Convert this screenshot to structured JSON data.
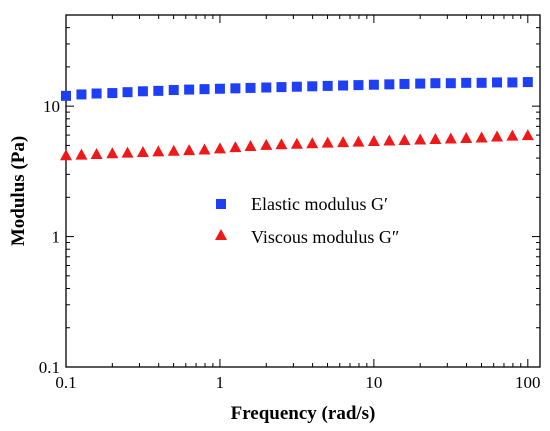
{
  "chart_data": {
    "type": "scatter",
    "xlabel": "Frequency (rad/s)",
    "ylabel": "Modulus (Pa)",
    "xscale": "log",
    "yscale": "log",
    "xlim": [
      0.1,
      120
    ],
    "ylim": [
      0.1,
      50
    ],
    "xticks": [
      {
        "value": 0.1,
        "label": "0.1"
      },
      {
        "value": 1,
        "label": "1"
      },
      {
        "value": 10,
        "label": "10"
      },
      {
        "value": 100,
        "label": "100"
      }
    ],
    "yticks": [
      {
        "value": 0.1,
        "label": "0.1"
      },
      {
        "value": 1,
        "label": "1"
      },
      {
        "value": 10,
        "label": "10"
      }
    ],
    "grid": false,
    "legend_position": "center",
    "x": [
      0.1,
      0.126,
      0.158,
      0.2,
      0.251,
      0.316,
      0.398,
      0.501,
      0.631,
      0.794,
      1,
      1.26,
      1.58,
      2,
      2.51,
      3.16,
      3.98,
      5.01,
      6.31,
      7.94,
      10,
      12.6,
      15.8,
      20,
      25.1,
      31.6,
      39.8,
      50.1,
      63.1,
      79.4,
      100
    ],
    "series": [
      {
        "name": "Elastic modulus G′",
        "marker": "square",
        "color": "#1f3ff5",
        "values": [
          12.0,
          12.3,
          12.5,
          12.6,
          12.8,
          13.0,
          13.1,
          13.3,
          13.4,
          13.5,
          13.6,
          13.7,
          13.8,
          13.9,
          14.0,
          14.1,
          14.2,
          14.3,
          14.4,
          14.5,
          14.6,
          14.7,
          14.8,
          14.9,
          15.0,
          15.0,
          15.1,
          15.1,
          15.2,
          15.2,
          15.3
        ]
      },
      {
        "name": "Viscous modulus G″",
        "marker": "triangle",
        "color": "#f01818",
        "values": [
          4.2,
          4.25,
          4.3,
          4.35,
          4.4,
          4.45,
          4.5,
          4.55,
          4.6,
          4.65,
          4.75,
          4.85,
          4.95,
          5.05,
          5.1,
          5.15,
          5.2,
          5.25,
          5.3,
          5.35,
          5.4,
          5.45,
          5.5,
          5.55,
          5.6,
          5.65,
          5.7,
          5.75,
          5.85,
          5.95,
          6.0
        ]
      }
    ]
  }
}
